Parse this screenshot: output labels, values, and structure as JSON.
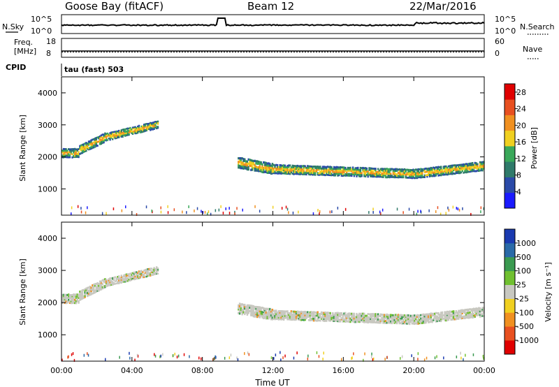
{
  "header": {
    "station": "Goose Bay (fitACF)",
    "beam": "Beam 12",
    "date": "22/Mar/2016"
  },
  "strips": {
    "nsky_label": "N.Sky",
    "nsky_ticks": [
      "10^5",
      "10^0"
    ],
    "nsearch_label": "N.Search",
    "nsearch_ticks": [
      "10^5",
      "10^0"
    ],
    "freq_label_1": "Freq.",
    "freq_label_2": "[MHz]",
    "freq_ticks": [
      "18",
      "8"
    ],
    "nave_label": "Nave",
    "nave_ticks": [
      "60",
      "0"
    ],
    "cpid_label": "CPID",
    "cpid_value": "tau (fast) 503"
  },
  "colors": {
    "power_scale": [
      "#1a1aff",
      "#2a4aa8",
      "#2f7a6a",
      "#3aa85a",
      "#f0d020",
      "#f09020",
      "#e85020",
      "#e00000"
    ],
    "velocity_scale": [
      "#e00000",
      "#e85020",
      "#f09020",
      "#f0d020",
      "#c8c8c0",
      "#70c030",
      "#3a9a50",
      "#2a6aa8",
      "#1a3ab0"
    ]
  },
  "chart_data": [
    {
      "type": "heatmap",
      "title": "Power",
      "xlabel": "",
      "ylabel": "Slant Range [km]",
      "y_ticks": [
        "1000",
        "2000",
        "3000",
        "4000"
      ],
      "ylim": [
        180,
        4500
      ],
      "xlim_hours": [
        0,
        24
      ],
      "colorbar_label": "Power [dB]",
      "colorbar_ticks": [
        "4",
        "8",
        "12",
        "16",
        "20",
        "24",
        "28"
      ],
      "colorbar_range": [
        0,
        30
      ],
      "echo_bands": [
        {
          "x": [
            0.0,
            1.0
          ],
          "y_center": [
            2100,
            2100
          ],
          "height": 300
        },
        {
          "x": [
            1.0,
            2.5
          ],
          "y_center": [
            2200,
            2600
          ],
          "height": 300
        },
        {
          "x": [
            2.5,
            5.5
          ],
          "y_center": [
            2600,
            3000
          ],
          "height": 250
        },
        {
          "x": [
            10.0,
            12.0
          ],
          "y_center": [
            1800,
            1600
          ],
          "height": 350
        },
        {
          "x": [
            12.0,
            20.0
          ],
          "y_center": [
            1600,
            1450
          ],
          "height": 300
        },
        {
          "x": [
            20.0,
            24.0
          ],
          "y_center": [
            1450,
            1700
          ],
          "height": 300
        }
      ]
    },
    {
      "type": "heatmap",
      "title": "Velocity",
      "xlabel": "Time UT",
      "ylabel": "Slant Range [km]",
      "x_ticks": [
        "00:00",
        "04:00",
        "08:00",
        "12:00",
        "16:00",
        "20:00",
        "00:00"
      ],
      "y_ticks": [
        "1000",
        "2000",
        "3000",
        "4000"
      ],
      "ylim": [
        180,
        4500
      ],
      "xlim_hours": [
        0,
        24
      ],
      "colorbar_label": "Velocity [m s⁻¹]",
      "colorbar_ticks": [
        "-1000",
        "-500",
        "-100",
        "-25",
        "25",
        "100",
        "500",
        "1000"
      ],
      "colorbar_range": [
        -1000,
        1000
      ],
      "echo_bands": [
        {
          "x": [
            0.0,
            1.0
          ],
          "y_center": [
            2100,
            2100
          ],
          "height": 300
        },
        {
          "x": [
            1.0,
            2.5
          ],
          "y_center": [
            2200,
            2600
          ],
          "height": 300
        },
        {
          "x": [
            2.5,
            5.5
          ],
          "y_center": [
            2600,
            3000
          ],
          "height": 250
        },
        {
          "x": [
            10.0,
            12.0
          ],
          "y_center": [
            1800,
            1600
          ],
          "height": 350
        },
        {
          "x": [
            12.0,
            20.0
          ],
          "y_center": [
            1600,
            1450
          ],
          "height": 300
        },
        {
          "x": [
            20.0,
            24.0
          ],
          "y_center": [
            1450,
            1700
          ],
          "height": 300
        }
      ]
    }
  ]
}
